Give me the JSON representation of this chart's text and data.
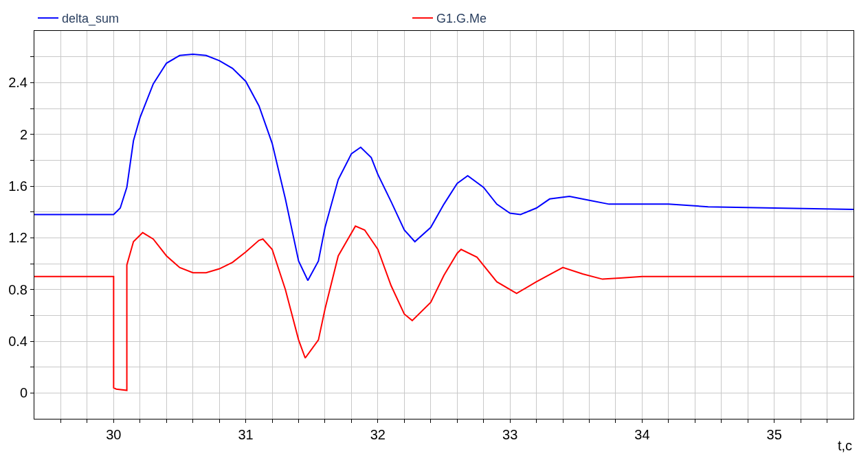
{
  "chart_data": {
    "type": "line",
    "xlabel": "t,c",
    "xlim": [
      29.4,
      35.6
    ],
    "ylim": [
      -0.2,
      2.8
    ],
    "xticks": [
      {
        "value": 29.6,
        "label": null
      },
      {
        "value": 29.8,
        "label": null
      },
      30,
      {
        "value": 30.2,
        "label": null
      },
      {
        "value": 30.4,
        "label": null
      },
      {
        "value": 30.6,
        "label": null
      },
      {
        "value": 30.8,
        "label": null
      },
      31,
      {
        "value": 31.2,
        "label": null
      },
      {
        "value": 31.4,
        "label": null
      },
      {
        "value": 31.6,
        "label": null
      },
      {
        "value": 31.8,
        "label": null
      },
      32,
      {
        "value": 32.2,
        "label": null
      },
      {
        "value": 32.4,
        "label": null
      },
      {
        "value": 32.6,
        "label": null
      },
      {
        "value": 32.8,
        "label": null
      },
      33,
      {
        "value": 33.2,
        "label": null
      },
      {
        "value": 33.4,
        "label": null
      },
      {
        "value": 33.6,
        "label": null
      },
      {
        "value": 33.8,
        "label": null
      },
      34,
      {
        "value": 34.2,
        "label": null
      },
      {
        "value": 34.4,
        "label": null
      },
      {
        "value": 34.6,
        "label": null
      },
      {
        "value": 34.8,
        "label": null
      },
      35,
      {
        "value": 35.2,
        "label": null
      },
      {
        "value": 35.4,
        "label": null
      }
    ],
    "yticks": [
      0,
      {
        "value": 0.2,
        "label": null
      },
      0.4,
      {
        "value": 0.6,
        "label": null
      },
      0.8,
      {
        "value": 1.0,
        "label": null
      },
      1.2,
      {
        "value": 1.4,
        "label": null
      },
      1.6,
      {
        "value": 1.8,
        "label": null
      },
      2,
      {
        "value": 2.2,
        "label": null
      },
      2.4,
      {
        "value": 2.6,
        "label": null
      }
    ],
    "grid": true,
    "legend": "top",
    "marker": "none",
    "line_style": "solid",
    "series": [
      {
        "name": "delta_sum",
        "color": "#0000ff",
        "x": [
          29.4,
          30.0,
          30.05,
          30.1,
          30.15,
          30.2,
          30.3,
          30.4,
          30.5,
          30.6,
          30.7,
          30.8,
          30.9,
          31.0,
          31.1,
          31.2,
          31.3,
          31.4,
          31.47,
          31.55,
          31.6,
          31.7,
          31.8,
          31.87,
          31.95,
          32.0,
          32.1,
          32.2,
          32.28,
          32.4,
          32.5,
          32.6,
          32.68,
          32.8,
          32.9,
          33.0,
          33.08,
          33.2,
          33.3,
          33.45,
          33.6,
          33.75,
          34.0,
          34.2,
          34.5,
          35.0,
          35.6
        ],
        "values": [
          1.38,
          1.38,
          1.43,
          1.59,
          1.95,
          2.13,
          2.39,
          2.55,
          2.61,
          2.62,
          2.61,
          2.57,
          2.51,
          2.41,
          2.22,
          1.93,
          1.5,
          1.02,
          0.87,
          1.02,
          1.28,
          1.65,
          1.85,
          1.9,
          1.82,
          1.69,
          1.48,
          1.26,
          1.17,
          1.28,
          1.46,
          1.62,
          1.68,
          1.59,
          1.46,
          1.39,
          1.38,
          1.43,
          1.5,
          1.52,
          1.49,
          1.46,
          1.46,
          1.46,
          1.44,
          1.43,
          1.42
        ]
      },
      {
        "name": "G1.G.Me",
        "color": "#ff0000",
        "x": [
          29.4,
          30.0,
          30.0,
          30.02,
          30.1,
          30.1,
          30.15,
          30.22,
          30.3,
          30.4,
          30.5,
          30.6,
          30.7,
          30.8,
          30.9,
          31.0,
          31.1,
          31.13,
          31.2,
          31.3,
          31.4,
          31.45,
          31.55,
          31.6,
          31.7,
          31.83,
          31.9,
          32.0,
          32.1,
          32.2,
          32.26,
          32.4,
          32.5,
          32.6,
          32.63,
          32.75,
          32.9,
          33.05,
          33.2,
          33.4,
          33.55,
          33.7,
          33.85,
          34.0,
          34.4,
          35.6
        ],
        "values": [
          0.9,
          0.9,
          0.04,
          0.03,
          0.02,
          0.99,
          1.17,
          1.24,
          1.19,
          1.06,
          0.97,
          0.93,
          0.93,
          0.96,
          1.01,
          1.09,
          1.18,
          1.19,
          1.11,
          0.8,
          0.41,
          0.27,
          0.41,
          0.65,
          1.06,
          1.29,
          1.26,
          1.11,
          0.83,
          0.61,
          0.56,
          0.7,
          0.91,
          1.08,
          1.11,
          1.05,
          0.86,
          0.77,
          0.86,
          0.97,
          0.92,
          0.88,
          0.89,
          0.9,
          0.9,
          0.9
        ]
      }
    ]
  }
}
